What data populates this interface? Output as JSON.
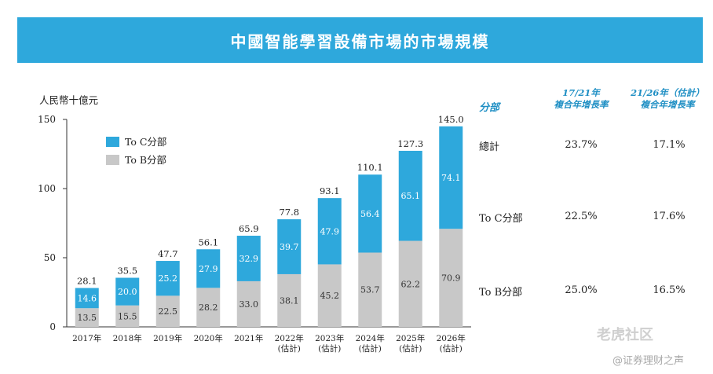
{
  "title": "中國智能學習設備市場的市場規模",
  "chart_data": {
    "type": "bar",
    "stacked": true,
    "ylabel": "人民幣十億元",
    "ylim": [
      0,
      150
    ],
    "yticks": [
      "0",
      "50",
      "100",
      "150"
    ],
    "categories": [
      "2017年",
      "2018年",
      "2019年",
      "2020年",
      "2021年",
      "2022年\n(估計)",
      "2023年\n(估計)",
      "2024年\n(估計)",
      "2025年\n(估計)",
      "2026年\n(估計)"
    ],
    "series": [
      {
        "name": "To B分部",
        "color": "#c8c8c8",
        "values": [
          13.5,
          15.5,
          22.5,
          28.2,
          33.0,
          38.1,
          45.2,
          53.7,
          62.2,
          70.9
        ],
        "labels": [
          "13.5",
          "15.5",
          "22.5",
          "28.2",
          "33.0",
          "38.1",
          "45.2",
          "53.7",
          "62.2",
          "70.9"
        ]
      },
      {
        "name": "To C分部",
        "color": "#2ea8dc",
        "values": [
          14.6,
          20.0,
          25.2,
          27.9,
          32.9,
          39.7,
          47.9,
          56.4,
          65.1,
          74.1
        ],
        "labels": [
          "14.6",
          "20.0",
          "25.2",
          "27.9",
          "32.9",
          "39.7",
          "47.9",
          "56.4",
          "65.1",
          "74.1"
        ]
      }
    ],
    "totals": [
      "28.1",
      "35.5",
      "47.7",
      "56.1",
      "65.9",
      "77.8",
      "93.1",
      "110.1",
      "127.3",
      "145.0"
    ],
    "legend": [
      "To C分部",
      "To B分部"
    ]
  },
  "table": {
    "col_segment": "分部",
    "col_cagr1": "17/21年\n複合年增長率",
    "col_cagr2": "21/26年（估計）\n複合年增長率",
    "rows": [
      {
        "label": "總計",
        "cagr1": "23.7%",
        "cagr2": "17.1%"
      },
      {
        "label": "To C分部",
        "cagr1": "22.5%",
        "cagr2": "17.6%"
      },
      {
        "label": "To B分部",
        "cagr1": "25.0%",
        "cagr2": "16.5%"
      }
    ]
  },
  "watermark": {
    "brand": "老虎社区",
    "account": "@证券理财之声"
  }
}
